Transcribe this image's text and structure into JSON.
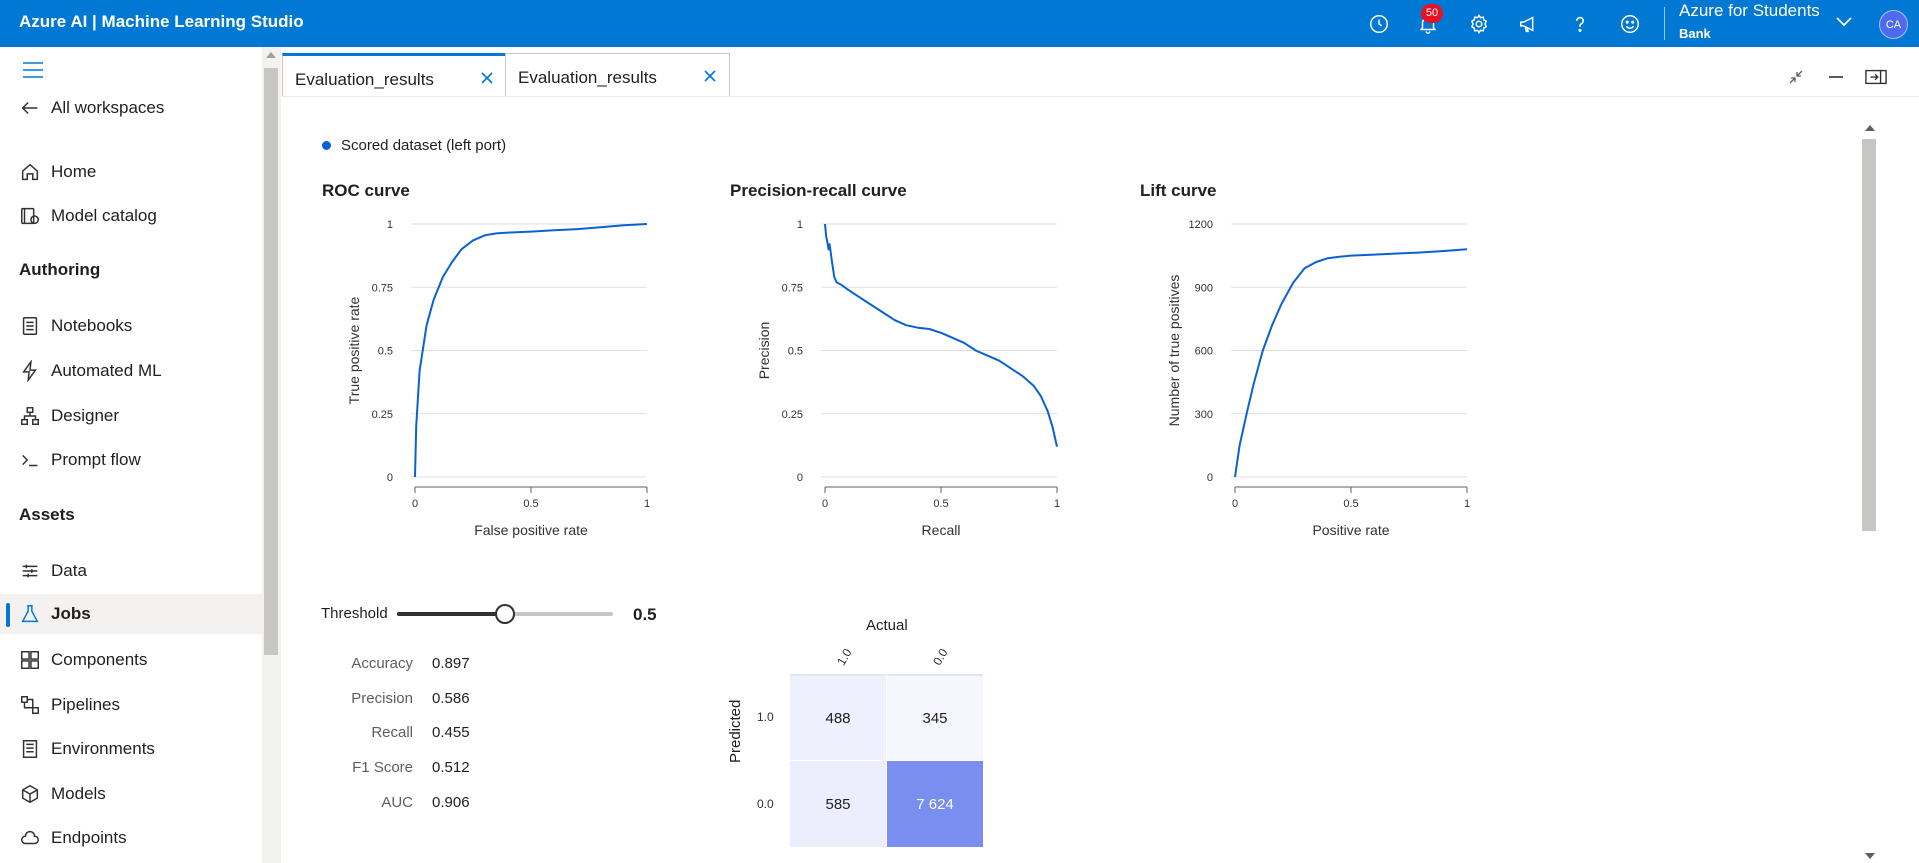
{
  "app": {
    "title": "Azure AI | Machine Learning Studio"
  },
  "topbar": {
    "notification_count": "50",
    "account_name": "Azure for Students",
    "account_sub": "Bank",
    "avatar_initials": "CA",
    "icons": [
      "history-icon",
      "bell-icon",
      "settings-icon",
      "megaphone-icon",
      "help-icon",
      "smiley-icon"
    ]
  },
  "sidebar": {
    "back_label": "All workspaces",
    "top_items": [
      {
        "label": "Home"
      },
      {
        "label": "Model catalog"
      }
    ],
    "authoring_heading": "Authoring",
    "authoring_items": [
      {
        "label": "Notebooks"
      },
      {
        "label": "Automated ML"
      },
      {
        "label": "Designer"
      },
      {
        "label": "Prompt flow"
      }
    ],
    "assets_heading": "Assets",
    "assets_items": [
      {
        "label": "Data"
      },
      {
        "label": "Jobs"
      },
      {
        "label": "Components"
      },
      {
        "label": "Pipelines"
      },
      {
        "label": "Environments"
      },
      {
        "label": "Models"
      },
      {
        "label": "Endpoints"
      }
    ],
    "active_item": "Jobs"
  },
  "tabs": [
    {
      "label": "Evaluation_results"
    },
    {
      "label": "Evaluation_results"
    }
  ],
  "legend": {
    "label": "Scored dataset (left port)",
    "color": "#0a62d0"
  },
  "threshold": {
    "label": "Threshold",
    "value": "0.5",
    "fraction": 0.5
  },
  "metrics": [
    {
      "name": "Accuracy",
      "value": "0.897"
    },
    {
      "name": "Precision",
      "value": "0.586"
    },
    {
      "name": "Recall",
      "value": "0.455"
    },
    {
      "name": "F1 Score",
      "value": "0.512"
    },
    {
      "name": "AUC",
      "value": "0.906"
    }
  ],
  "confusion_matrix": {
    "actual_label": "Actual",
    "predicted_label": "Predicted",
    "col_labels": [
      "1.0",
      "0.0"
    ],
    "row_labels": [
      "1.0",
      "0.0"
    ],
    "cells": [
      [
        "488",
        "345"
      ],
      [
        "585",
        "7 624"
      ]
    ],
    "values": [
      [
        488,
        345
      ],
      [
        585,
        7624
      ]
    ]
  },
  "chart_data": [
    {
      "type": "line",
      "title": "ROC curve",
      "xlabel": "False positive rate",
      "ylabel": "True positive rate",
      "xlim": [
        0,
        1
      ],
      "ylim": [
        0,
        1
      ],
      "xticks": [
        "0",
        "0.5",
        "1"
      ],
      "yticks": [
        "0",
        "0.25",
        "0.5",
        "0.75",
        "1"
      ],
      "grid": true,
      "series": [
        {
          "x": [
            0,
            0.005,
            0.02,
            0.05,
            0.08,
            0.12,
            0.16,
            0.2,
            0.25,
            0.3,
            0.35,
            0.4,
            0.5,
            0.6,
            0.7,
            0.8,
            0.9,
            1.0
          ],
          "y": [
            0,
            0.2,
            0.42,
            0.6,
            0.7,
            0.79,
            0.85,
            0.9,
            0.935,
            0.955,
            0.963,
            0.966,
            0.97,
            0.975,
            0.98,
            0.987,
            0.995,
            1.0
          ]
        }
      ]
    },
    {
      "type": "line",
      "title": "Precision-recall curve",
      "xlabel": "Recall",
      "ylabel": "Precision",
      "xlim": [
        0,
        1
      ],
      "ylim": [
        0,
        1
      ],
      "xticks": [
        "0",
        "0.5",
        "1"
      ],
      "yticks": [
        "0",
        "0.25",
        "0.5",
        "0.75",
        "1"
      ],
      "grid": true,
      "series": [
        {
          "x": [
            0,
            0.005,
            0.01,
            0.015,
            0.02,
            0.03,
            0.04,
            0.05,
            0.07,
            0.1,
            0.15,
            0.2,
            0.25,
            0.3,
            0.35,
            0.4,
            0.45,
            0.5,
            0.55,
            0.6,
            0.65,
            0.7,
            0.75,
            0.8,
            0.85,
            0.9,
            0.93,
            0.96,
            0.98,
            1.0
          ],
          "y": [
            1.0,
            0.95,
            0.93,
            0.9,
            0.92,
            0.85,
            0.79,
            0.77,
            0.76,
            0.74,
            0.71,
            0.68,
            0.65,
            0.62,
            0.6,
            0.59,
            0.585,
            0.57,
            0.55,
            0.53,
            0.5,
            0.48,
            0.46,
            0.43,
            0.4,
            0.36,
            0.32,
            0.26,
            0.2,
            0.12
          ]
        }
      ]
    },
    {
      "type": "line",
      "title": "Lift curve",
      "xlabel": "Positive rate",
      "ylabel": "Number of true positives",
      "xlim": [
        0,
        1
      ],
      "ylim": [
        0,
        1200
      ],
      "xticks": [
        "0",
        "0.5",
        "1"
      ],
      "yticks": [
        "0",
        "300",
        "600",
        "900",
        "1200"
      ],
      "grid": true,
      "series": [
        {
          "x": [
            0,
            0.02,
            0.05,
            0.08,
            0.12,
            0.16,
            0.2,
            0.25,
            0.3,
            0.35,
            0.4,
            0.45,
            0.5,
            0.6,
            0.7,
            0.8,
            0.9,
            1.0
          ],
          "y": [
            0,
            150,
            300,
            440,
            600,
            720,
            820,
            920,
            990,
            1020,
            1038,
            1045,
            1050,
            1055,
            1060,
            1065,
            1072,
            1080
          ]
        }
      ]
    }
  ]
}
